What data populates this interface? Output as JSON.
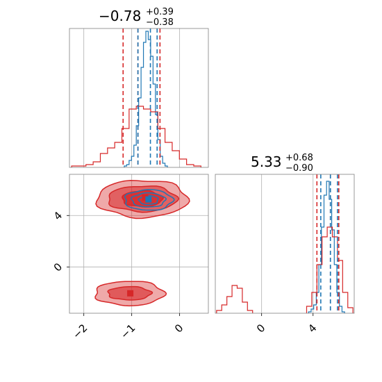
{
  "chart_data": {
    "type": "corner",
    "grid": true,
    "colors": {
      "blue": "#1f77b4",
      "red": "#d62728",
      "grid": "#b0b0b0",
      "frame": "#808080"
    },
    "panels": [
      {
        "id": "x-marginal",
        "type": "histogram",
        "title": {
          "main": "−0.78",
          "sup": "+0.39",
          "sub": "−0.38"
        },
        "xlim": [
          -2.3,
          0.6
        ],
        "x_ticks": [
          "−2",
          "−1",
          "0"
        ],
        "x_tick_values": [
          -2,
          -1,
          0
        ],
        "quantile_lines": {
          "blue": [
            -0.87,
            -0.61,
            -0.47
          ],
          "red": [
            -1.18,
            -0.87,
            -0.41
          ]
        },
        "series": [
          {
            "name": "",
            "color": "blue",
            "x": [
              -1.13,
              -1.08,
              -1.03,
              -0.98,
              -0.93,
              -0.88,
              -0.83,
              -0.78,
              -0.73,
              -0.68,
              -0.63,
              -0.58,
              -0.53,
              -0.48,
              -0.43,
              -0.38,
              -0.33,
              -0.28
            ],
            "values": [
              0.01,
              0.02,
              0.05,
              0.08,
              0.16,
              0.3,
              0.5,
              0.72,
              0.9,
              0.98,
              0.92,
              0.8,
              0.6,
              0.38,
              0.2,
              0.08,
              0.03,
              0.01
            ]
          },
          {
            "name": "",
            "color": "red",
            "x": [
              -2.18,
              -2.03,
              -1.88,
              -1.73,
              -1.58,
              -1.43,
              -1.28,
              -1.13,
              -0.98,
              -0.83,
              -0.68,
              -0.53,
              -0.38,
              -0.23,
              -0.08,
              0.07,
              0.22,
              0.37
            ],
            "values": [
              0.01,
              0.01,
              0.02,
              0.04,
              0.1,
              0.14,
              0.18,
              0.28,
              0.42,
              0.44,
              0.42,
              0.4,
              0.28,
              0.18,
              0.12,
              0.06,
              0.02,
              0.01
            ]
          }
        ]
      },
      {
        "id": "xy-joint",
        "type": "contour",
        "xlim": [
          -2.3,
          0.6
        ],
        "ylim": [
          -3.6,
          7.2
        ],
        "y_ticks": [
          "0",
          "4"
        ],
        "y_tick_values": [
          0,
          4
        ],
        "x_ticks": [
          "−2",
          "−1",
          "0"
        ],
        "x_tick_values": [
          -2,
          -1,
          0
        ],
        "blobs": [
          {
            "color": "red",
            "center": [
              -0.78,
              5.3
            ],
            "levels": [
              {
                "rx": 0.95,
                "ry": 1.45,
                "opacity": 0.4
              },
              {
                "rx": 0.72,
                "ry": 1.0,
                "opacity": 0.55
              },
              {
                "rx": 0.42,
                "ry": 0.62,
                "opacity": 0.8
              }
            ]
          },
          {
            "color": "red",
            "center": [
              -1.05,
              -2.05
            ],
            "levels": [
              {
                "rx": 0.72,
                "ry": 0.95,
                "opacity": 0.4
              },
              {
                "rx": 0.45,
                "ry": 0.52,
                "opacity": 0.6
              }
            ]
          },
          {
            "color": "blue",
            "center": [
              -0.65,
              5.2
            ],
            "levels": [
              {
                "rx": 0.5,
                "ry": 0.8,
                "opacity": 0
              },
              {
                "rx": 0.35,
                "ry": 0.55,
                "opacity": 0
              },
              {
                "rx": 0.2,
                "ry": 0.35,
                "opacity": 0
              }
            ]
          }
        ],
        "markers": [
          {
            "color": "red",
            "x": -0.72,
            "y": 5.4
          },
          {
            "color": "red",
            "x": -1.03,
            "y": -2.05
          },
          {
            "color": "blue",
            "x": -0.65,
            "y": 5.25
          }
        ]
      },
      {
        "id": "y-marginal",
        "type": "histogram",
        "title": {
          "main": "5.33",
          "sup": "+0.68",
          "sub": "−0.90"
        },
        "xlim": [
          -3.6,
          7.2
        ],
        "x_ticks": [
          "0",
          "4"
        ],
        "x_tick_values": [
          0,
          4
        ],
        "quantile_lines": {
          "blue": [
            4.6,
            5.35,
            5.9
          ],
          "red": [
            4.3,
            5.35,
            6.0
          ]
        },
        "series": [
          {
            "name": "",
            "color": "blue",
            "x": [
              3.75,
              3.95,
              4.15,
              4.35,
              4.55,
              4.75,
              4.95,
              5.15,
              5.35,
              5.55,
              5.75,
              5.95,
              6.15,
              6.35
            ],
            "values": [
              0.01,
              0.03,
              0.06,
              0.15,
              0.35,
              0.62,
              0.85,
              0.95,
              0.82,
              0.6,
              0.35,
              0.15,
              0.05,
              0.01
            ]
          },
          {
            "name": "",
            "color": "red",
            "x": [
              -3.3,
              -2.9,
              -2.5,
              -2.1,
              -1.7,
              -1.3,
              -0.9,
              3.7,
              4.1,
              4.5,
              4.9,
              5.3,
              5.7,
              6.1,
              6.5,
              6.9
            ],
            "values": [
              0.02,
              0.06,
              0.12,
              0.2,
              0.18,
              0.08,
              0.02,
              0.05,
              0.15,
              0.35,
              0.55,
              0.62,
              0.55,
              0.38,
              0.15,
              0.04
            ]
          }
        ]
      }
    ]
  }
}
